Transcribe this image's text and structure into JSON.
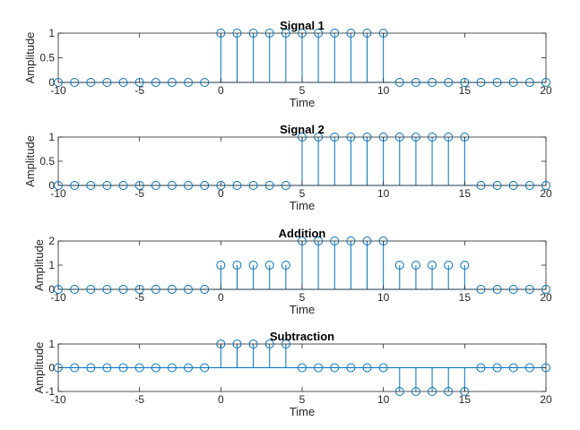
{
  "chart_data": [
    {
      "type": "stem",
      "title": "Signal 1",
      "xlabel": "Time",
      "ylabel": "Amplitude",
      "xlim": [
        -10,
        20
      ],
      "ylim": [
        0,
        1
      ],
      "xticks": [
        "-10",
        "-5",
        "0",
        "5",
        "10",
        "15",
        "20"
      ],
      "yticks": [
        "0",
        "0.5",
        "1"
      ],
      "x": [
        -10,
        -9,
        -8,
        -7,
        -6,
        -5,
        -4,
        -3,
        -2,
        -1,
        0,
        1,
        2,
        3,
        4,
        5,
        6,
        7,
        8,
        9,
        10,
        11,
        12,
        13,
        14,
        15,
        16,
        17,
        18,
        19,
        20
      ],
      "values": [
        0,
        0,
        0,
        0,
        0,
        0,
        0,
        0,
        0,
        0,
        1,
        1,
        1,
        1,
        1,
        1,
        1,
        1,
        1,
        1,
        1,
        0,
        0,
        0,
        0,
        0,
        0,
        0,
        0,
        0,
        0
      ],
      "color": "#0072BD"
    },
    {
      "type": "stem",
      "title": "Signal 2",
      "xlabel": "Time",
      "ylabel": "Amplitude",
      "xlim": [
        -10,
        20
      ],
      "ylim": [
        0,
        1
      ],
      "xticks": [
        "-10",
        "-5",
        "0",
        "5",
        "10",
        "15",
        "20"
      ],
      "yticks": [
        "0",
        "0.5",
        "1"
      ],
      "x": [
        -10,
        -9,
        -8,
        -7,
        -6,
        -5,
        -4,
        -3,
        -2,
        -1,
        0,
        1,
        2,
        3,
        4,
        5,
        6,
        7,
        8,
        9,
        10,
        11,
        12,
        13,
        14,
        15,
        16,
        17,
        18,
        19,
        20
      ],
      "values": [
        0,
        0,
        0,
        0,
        0,
        0,
        0,
        0,
        0,
        0,
        0,
        0,
        0,
        0,
        0,
        1,
        1,
        1,
        1,
        1,
        1,
        1,
        1,
        1,
        1,
        1,
        0,
        0,
        0,
        0,
        0
      ],
      "color": "#0072BD"
    },
    {
      "type": "stem",
      "title": "Addition",
      "xlabel": "Time",
      "ylabel": "Amplitude",
      "xlim": [
        -10,
        20
      ],
      "ylim": [
        0,
        2
      ],
      "xticks": [
        "-10",
        "-5",
        "0",
        "5",
        "10",
        "15",
        "20"
      ],
      "yticks": [
        "0",
        "1",
        "2"
      ],
      "x": [
        -10,
        -9,
        -8,
        -7,
        -6,
        -5,
        -4,
        -3,
        -2,
        -1,
        0,
        1,
        2,
        3,
        4,
        5,
        6,
        7,
        8,
        9,
        10,
        11,
        12,
        13,
        14,
        15,
        16,
        17,
        18,
        19,
        20
      ],
      "values": [
        0,
        0,
        0,
        0,
        0,
        0,
        0,
        0,
        0,
        0,
        1,
        1,
        1,
        1,
        1,
        2,
        2,
        2,
        2,
        2,
        2,
        1,
        1,
        1,
        1,
        1,
        0,
        0,
        0,
        0,
        0
      ],
      "color": "#0072BD"
    },
    {
      "type": "stem",
      "title": "Subtraction",
      "xlabel": "Time",
      "ylabel": "Amplitude",
      "xlim": [
        -10,
        20
      ],
      "ylim": [
        -1,
        1
      ],
      "xticks": [
        "-10",
        "-5",
        "0",
        "5",
        "10",
        "15",
        "20"
      ],
      "yticks": [
        "-1",
        "0",
        "1"
      ],
      "x": [
        -10,
        -9,
        -8,
        -7,
        -6,
        -5,
        -4,
        -3,
        -2,
        -1,
        0,
        1,
        2,
        3,
        4,
        5,
        6,
        7,
        8,
        9,
        10,
        11,
        12,
        13,
        14,
        15,
        16,
        17,
        18,
        19,
        20
      ],
      "values": [
        0,
        0,
        0,
        0,
        0,
        0,
        0,
        0,
        0,
        0,
        1,
        1,
        1,
        1,
        1,
        0,
        0,
        0,
        0,
        0,
        0,
        -1,
        -1,
        -1,
        -1,
        -1,
        0,
        0,
        0,
        0,
        0
      ],
      "color": "#0072BD"
    }
  ]
}
